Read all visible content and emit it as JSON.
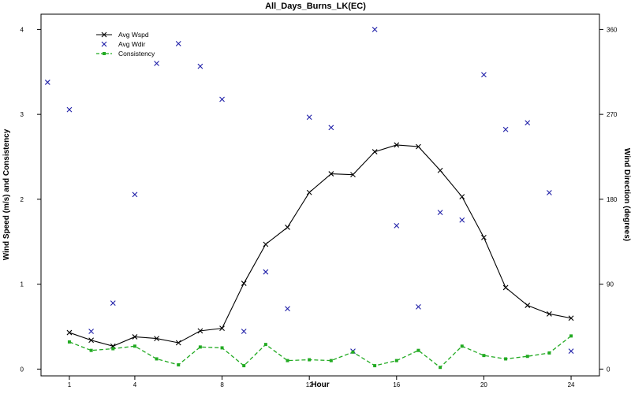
{
  "chart_data": {
    "type": "line",
    "title": "All_Days_Burns_LK(EC)",
    "xlabel": "Hour",
    "ylabel_left": "Wind Speed (m/s) and Consistency",
    "ylabel_right": "Wind Direction (degrees)",
    "xlim": [
      -0.3,
      25.3
    ],
    "ylim_left": [
      -0.08,
      4.18
    ],
    "ylim_right": [
      -7.2,
      376.2
    ],
    "x_ticks": [
      1,
      4,
      8,
      12,
      16,
      20,
      24
    ],
    "x_tick_labels": [
      "1",
      "4",
      "8",
      "12",
      "16",
      "20",
      "24"
    ],
    "y_left_ticks": [
      0,
      1,
      2,
      3,
      4
    ],
    "y_left_tick_labels": [
      "0",
      "1",
      "2",
      "3",
      "4"
    ],
    "y_right_ticks": [
      0,
      90,
      180,
      270,
      360
    ],
    "y_right_tick_labels": [
      "0",
      "90",
      "180",
      "270",
      "360"
    ],
    "legend_position": "top-left",
    "grid": false,
    "series": [
      {
        "name": "Avg Wspd",
        "axis": "left",
        "style": "line-x",
        "color": "#000000",
        "x": [
          1,
          2,
          3,
          4,
          5,
          6,
          7,
          8,
          9,
          10,
          11,
          12,
          13,
          14,
          15,
          16,
          17,
          18,
          19,
          20,
          21,
          22,
          23,
          24
        ],
        "values": [
          0.43,
          0.34,
          0.27,
          0.38,
          0.36,
          0.31,
          0.45,
          0.48,
          1.01,
          1.47,
          1.67,
          2.08,
          2.3,
          2.29,
          2.56,
          2.64,
          2.62,
          2.34,
          2.03,
          1.55,
          0.96,
          0.75,
          0.65,
          0.6
        ]
      },
      {
        "name": "Avg Wdir",
        "axis": "right",
        "style": "marker-x",
        "color": "#1f1fa8",
        "x": [
          0,
          1,
          2,
          3,
          4,
          5,
          6,
          7,
          8,
          9,
          10,
          11,
          12,
          13,
          14,
          15,
          16,
          17,
          18,
          19,
          20,
          21,
          22,
          23,
          24
        ],
        "values": [
          304,
          275,
          40,
          70,
          185,
          324,
          345,
          321,
          286,
          40,
          103,
          64,
          267,
          256,
          19,
          360,
          152,
          66,
          166,
          158,
          312,
          254,
          261,
          187,
          19
        ]
      },
      {
        "name": "Consistency",
        "axis": "left",
        "style": "dashed-dot",
        "color": "#22aa22",
        "x": [
          1,
          2,
          3,
          4,
          5,
          6,
          7,
          8,
          9,
          10,
          11,
          12,
          13,
          14,
          15,
          16,
          17,
          18,
          19,
          20,
          21,
          22,
          23,
          24
        ],
        "values": [
          0.32,
          0.22,
          0.24,
          0.27,
          0.12,
          0.05,
          0.26,
          0.25,
          0.04,
          0.29,
          0.1,
          0.11,
          0.1,
          0.2,
          0.04,
          0.1,
          0.22,
          0.02,
          0.27,
          0.16,
          0.12,
          0.15,
          0.19,
          0.39
        ]
      }
    ]
  }
}
